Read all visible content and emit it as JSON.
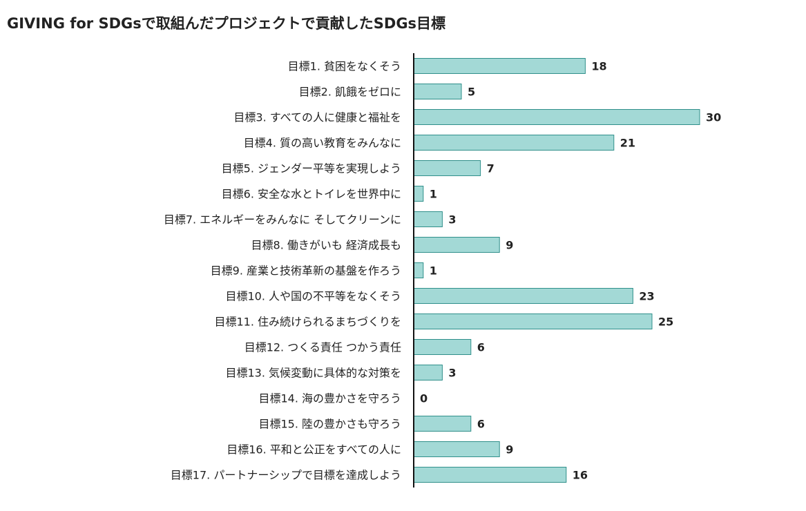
{
  "title": "GIVING for SDGsで取組んだプロジェクトで貢献したSDGs目標",
  "colors": {
    "bar_fill": "#a3d9d6",
    "bar_stroke": "#2f8f8a",
    "axis": "#111111",
    "text": "#222222"
  },
  "chart_data": {
    "type": "bar",
    "orientation": "horizontal",
    "title": "GIVING for SDGsで取組んだプロジェクトで貢献したSDGs目標",
    "xlabel": "",
    "ylabel": "",
    "xlim": [
      0,
      30
    ],
    "grid": false,
    "categories": [
      "目標1. 貧困をなくそう",
      "目標2. 飢餓をゼロに",
      "目標3. すべての人に健康と福祉を",
      "目標4. 質の高い教育をみんなに",
      "目標5. ジェンダー平等を実現しよう",
      "目標6. 安全な水とトイレを世界中に",
      "目標7. エネルギーをみんなに そしてクリーンに",
      "目標8. 働きがいも 経済成長も",
      "目標9. 産業と技術革新の基盤を作ろう",
      "目標10. 人や国の不平等をなくそう",
      "目標11. 住み続けられるまちづくりを",
      "目標12. つくる責任 つかう責任",
      "目標13. 気候変動に具体的な対策を",
      "目標14. 海の豊かさを守ろう",
      "目標15. 陸の豊かさも守ろう",
      "目標16. 平和と公正をすべての人に",
      "目標17. パートナーシップで目標を達成しよう"
    ],
    "values": [
      18,
      5,
      30,
      21,
      7,
      1,
      3,
      9,
      1,
      23,
      25,
      6,
      3,
      0,
      6,
      9,
      16
    ]
  }
}
